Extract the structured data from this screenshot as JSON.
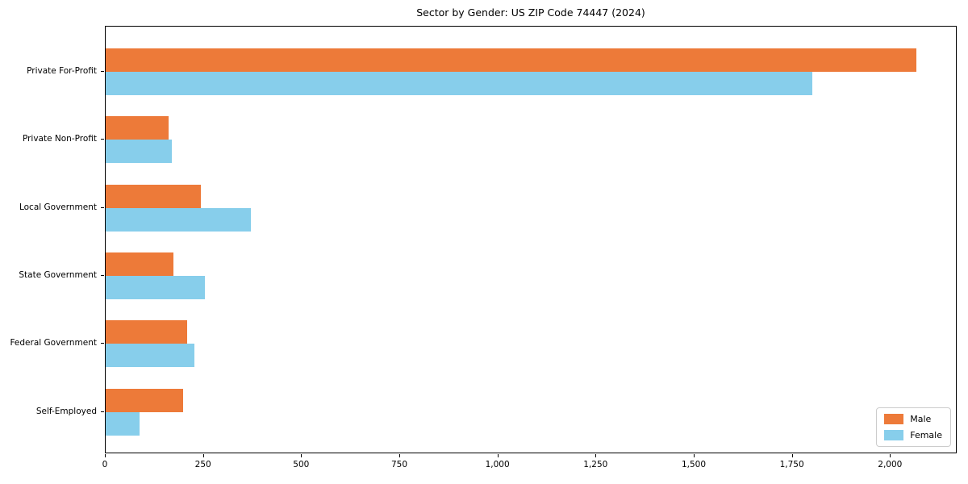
{
  "chart_data": {
    "type": "bar",
    "orientation": "horizontal",
    "title": "Sector by Gender: US ZIP Code 74447 (2024)",
    "categories": [
      "Private For-Profit",
      "Private Non-Profit",
      "Local Government",
      "State Government",
      "Federal Government",
      "Self-Employed"
    ],
    "series": [
      {
        "name": "Male",
        "color": "#ED7A39",
        "values": [
          2065,
          160,
          242,
          172,
          207,
          198
        ]
      },
      {
        "name": "Female",
        "color": "#87CEEB",
        "values": [
          1800,
          168,
          370,
          253,
          226,
          87
        ]
      }
    ],
    "xlabel": "",
    "ylabel": "",
    "xlim": [
      0,
      2170
    ],
    "xticks": [
      0,
      250,
      500,
      750,
      1000,
      1250,
      1500,
      1750,
      2000
    ],
    "xtick_labels": [
      "0",
      "250",
      "500",
      "750",
      "1,000",
      "1,250",
      "1,500",
      "1,750",
      "2,000"
    ],
    "grid": false,
    "legend_position": "lower right",
    "colors": {
      "male": "#ED7A39",
      "female": "#87CEEB",
      "spine": "#000000",
      "background": "#ffffff"
    }
  }
}
